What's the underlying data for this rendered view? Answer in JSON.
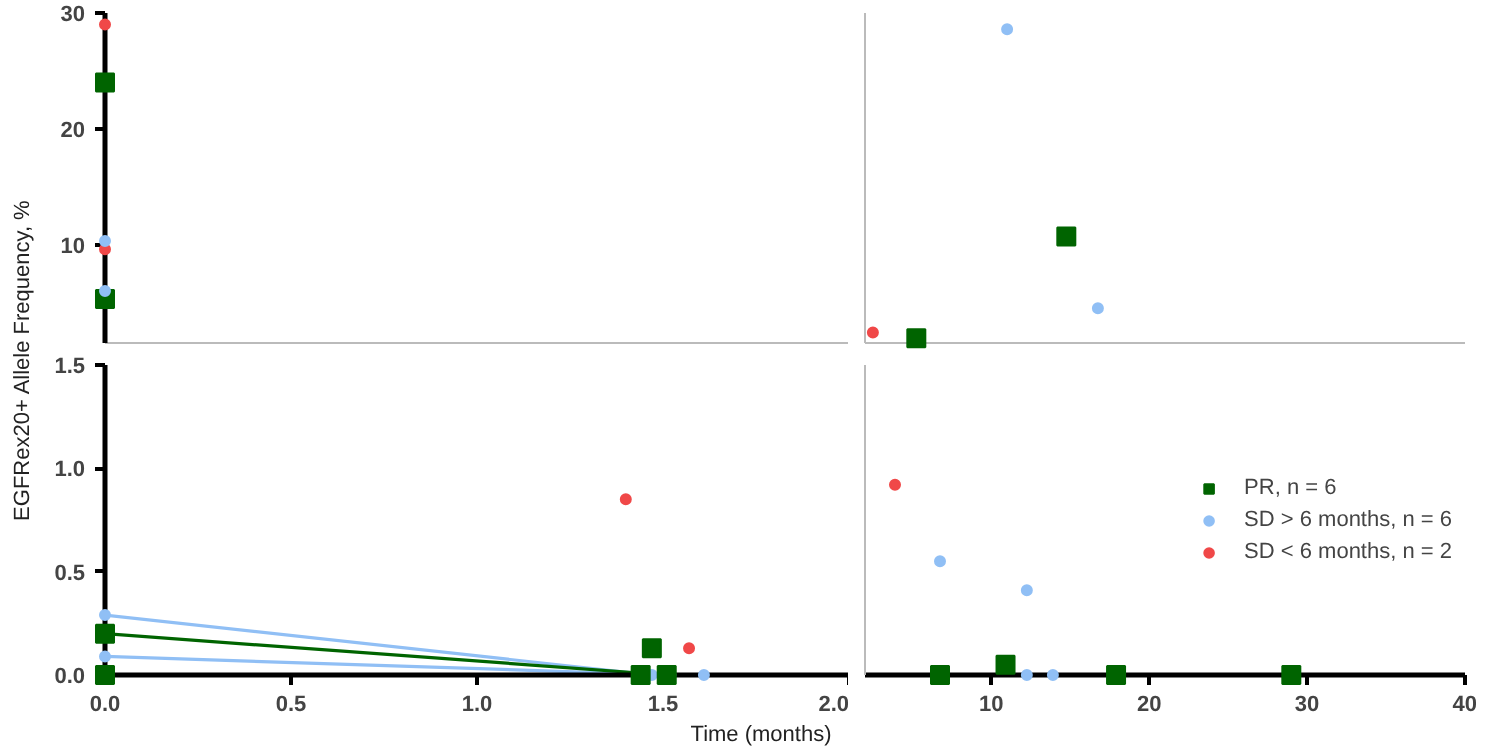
{
  "chart_data": [
    {
      "type": "scatter",
      "xlim": [
        0,
        2
      ],
      "ylim": [
        1.5,
        30
      ],
      "yticks": [
        10,
        20,
        30
      ],
      "tick_labels": "y",
      "grid": false,
      "series": [
        {
          "color": "#006400",
          "marker": "square",
          "x": [
            0,
            0
          ],
          "values": [
            24,
            5.3
          ]
        },
        {
          "color": "#f04848",
          "marker": "circle",
          "x": [
            0,
            0
          ],
          "values": [
            29,
            9.6
          ]
        },
        {
          "color": "#90bff5",
          "marker": "circle",
          "x": [
            0,
            0
          ],
          "values": [
            10.3,
            6.0
          ]
        }
      ]
    },
    {
      "type": "scatter",
      "xlim": [
        2,
        40
      ],
      "ylim": [
        1.5,
        30
      ],
      "tick_labels": false,
      "grid": false,
      "series": [
        {
          "color": "#006400",
          "marker": "square",
          "x": [
            14.75,
            5.25
          ],
          "values": [
            10.7,
            1.9
          ]
        },
        {
          "color": "#90bff5",
          "marker": "circle",
          "x": [
            11,
            16.75
          ],
          "values": [
            28.6,
            4.5
          ]
        },
        {
          "color": "#f04848",
          "marker": "circle",
          "x": [
            2.5
          ],
          "values": [
            2.4
          ]
        }
      ]
    },
    {
      "type": "line",
      "ylabel": "EGFRex20+ Allele Frequency, %",
      "xlabel": "Time (months)",
      "xlim": [
        0,
        2
      ],
      "ylim": [
        0,
        1.5
      ],
      "xticks": [
        {
          "value": 0,
          "label": "0.0"
        },
        {
          "value": 0.5,
          "label": "0.5"
        },
        {
          "value": 1,
          "label": "1.0"
        },
        {
          "value": 1.5,
          "label": "1.5"
        },
        {
          "value": 2,
          "label": "2.0"
        }
      ],
      "yticks": [
        {
          "value": 0,
          "label": "0.0"
        },
        {
          "value": 0.5,
          "label": "0.5"
        },
        {
          "value": 1,
          "label": "1.0"
        },
        {
          "value": 1.5,
          "label": "1.5"
        }
      ],
      "grid": false,
      "series": [
        {
          "type": "scatter",
          "color": "#90bff5",
          "marker": "circle",
          "x": [
            1.61
          ],
          "values": [
            0
          ]
        },
        {
          "color": "#90bff5",
          "marker": "circle",
          "x": [
            0,
            1.47
          ],
          "values": [
            0.29,
            0
          ]
        },
        {
          "color": "#90bff5",
          "marker": "circle",
          "x": [
            0,
            1.52
          ],
          "values": [
            0.09,
            0
          ]
        },
        {
          "type": "scatter",
          "color": "#006400",
          "marker": "square",
          "x": [
            0,
            1.44
          ],
          "values": [
            0,
            0
          ]
        },
        {
          "color": "#006400",
          "marker": "square",
          "x": [
            0,
            1.51
          ],
          "values": [
            0.2,
            0
          ]
        },
        {
          "type": "scatter",
          "color": "#006400",
          "marker": "square",
          "x": [
            1.47
          ],
          "values": [
            0.13
          ]
        },
        {
          "type": "scatter",
          "color": "#f04848",
          "marker": "circle",
          "x": [
            1.4,
            1.57
          ],
          "values": [
            0.85,
            0.13
          ]
        }
      ]
    },
    {
      "type": "scatter",
      "xlim": [
        2,
        40
      ],
      "ylim": [
        0,
        1.5
      ],
      "xticks": [
        10,
        20,
        30,
        40
      ],
      "tick_labels": "x",
      "grid": false,
      "legend": "right",
      "series": [
        {
          "name": "PR, n = 6",
          "color": "#006400",
          "marker": "square",
          "x": [
            6.75,
            10.9,
            17.9,
            29
          ],
          "values": [
            0,
            0.05,
            0,
            0
          ]
        },
        {
          "name": "SD > 6 months, n = 6",
          "color": "#90bff5",
          "marker": "circle",
          "x": [
            6.75,
            12.25,
            12.25,
            13.9
          ],
          "values": [
            0.55,
            0.41,
            0,
            0
          ]
        },
        {
          "name": "SD < 6 months, n = 2",
          "color": "#f04848",
          "marker": "circle",
          "x": [
            3.9
          ],
          "values": [
            0.92
          ]
        }
      ]
    }
  ]
}
